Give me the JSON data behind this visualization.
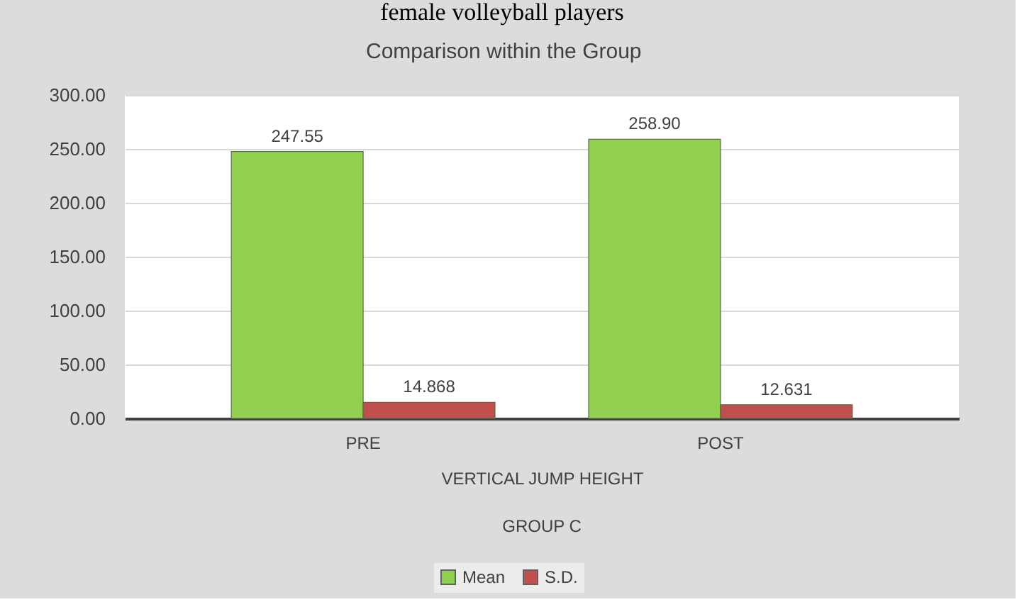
{
  "chart_data": {
    "type": "bar",
    "title": "Comparison within the Group",
    "categories": [
      "PRE",
      "POST"
    ],
    "xlabel": "VERTICAL JUMP HEIGHT",
    "annotations": [
      "female volleyball players",
      "GROUP C"
    ],
    "series": [
      {
        "name": "Mean",
        "color": "#92d050",
        "values": [
          247.55,
          258.9
        ],
        "value_labels": [
          "247.55",
          "258.90"
        ]
      },
      {
        "name": "S.D.",
        "color": "#c0504d",
        "values": [
          14.868,
          12.631
        ],
        "value_labels": [
          "14.868",
          "12.631"
        ]
      }
    ],
    "ylim": [
      0,
      300
    ],
    "yticks": [
      {
        "value": 0,
        "label": "0.00"
      },
      {
        "value": 50,
        "label": "50.00"
      },
      {
        "value": 100,
        "label": "100.00"
      },
      {
        "value": 150,
        "label": "150.00"
      },
      {
        "value": 200,
        "label": "200.00"
      },
      {
        "value": 250,
        "label": "250.00"
      },
      {
        "value": 300,
        "label": "300.00"
      }
    ],
    "grid": "y",
    "legend": "bottom"
  }
}
